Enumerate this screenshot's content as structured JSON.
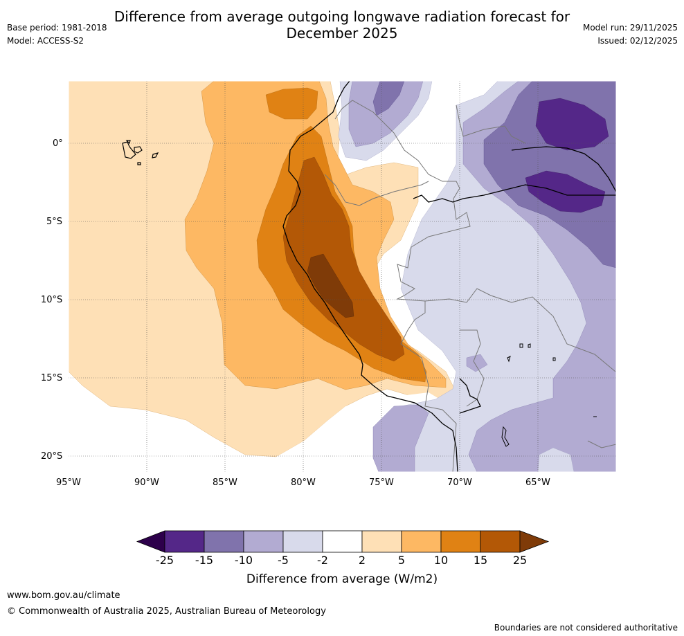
{
  "title": "Difference from average outgoing longwave radiation forecast for\nDecember 2025",
  "title_line1": "Difference from average outgoing longwave radiation forecast for",
  "title_line2": "December 2025",
  "meta": {
    "base_period": "Base period: 1981-2018",
    "model": "Model: ACCESS-S2",
    "model_run": "Model run: 29/11/2025",
    "issued": "Issued: 02/12/2025"
  },
  "map": {
    "lat_labels": [
      "0°",
      "5°S",
      "10°S",
      "15°S",
      "20°S"
    ],
    "lon_labels": [
      "95°W",
      "90°W",
      "85°W",
      "80°W",
      "75°W",
      "70°W",
      "65°W"
    ],
    "regions_described": [
      "Eastern Pacific",
      "Galápagos Islands",
      "Peru",
      "Ecuador",
      "Brazil",
      "Bolivia",
      "Chile"
    ]
  },
  "colorbar": {
    "title": "Difference from average (W/m2)",
    "labels": [
      "-25",
      "-15",
      "-10",
      "-5",
      "-2",
      "2",
      "5",
      "10",
      "15",
      "25"
    ],
    "colors": [
      "#2d004b",
      "#542788",
      "#8073ac",
      "#b2abd2",
      "#d8daeb",
      "#ffffff",
      "#fee0b6",
      "#fdb863",
      "#e08214",
      "#b35806",
      "#7f3b08"
    ]
  },
  "footer": {
    "website": "www.bom.gov.au/climate",
    "copyright": "© Commonwealth of Australia 2025, Australian Bureau of Meteorology",
    "disclaimer": "Boundaries are not considered authoritative"
  }
}
